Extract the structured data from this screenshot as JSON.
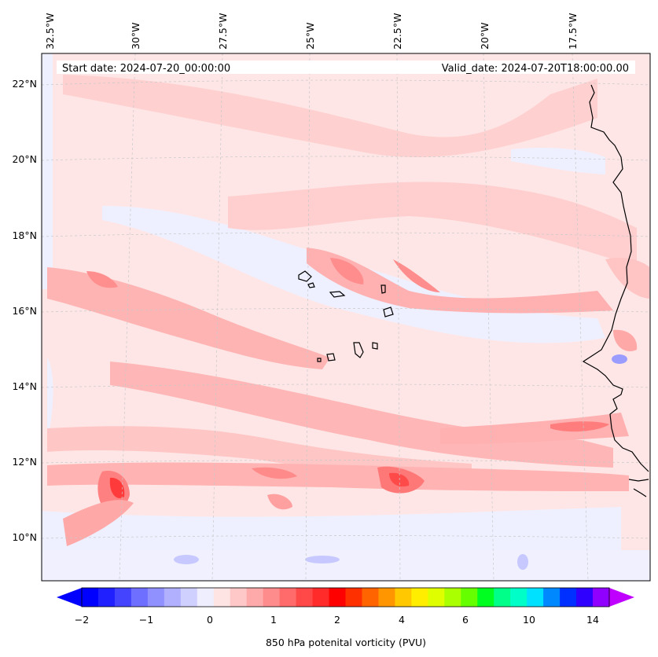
{
  "header": {
    "start_date": "Start date: 2024-07-20_00:00:00",
    "valid_date": "Valid_date: 2024-07-20T18:00:00.00"
  },
  "map": {
    "longitude_labels": [
      "32.5°W",
      "30°W",
      "27.5°W",
      "25°W",
      "22.5°W",
      "20°W",
      "17.5°W"
    ],
    "latitude_labels": [
      "22°N",
      "20°N",
      "18°N",
      "16°N",
      "14°N",
      "12°N",
      "10°N"
    ]
  },
  "colorbar": {
    "label": "850 hPa potenital vorticity (PVU)",
    "ticks": [
      "−2",
      "−1",
      "0",
      "1",
      "2",
      "4",
      "6",
      "10",
      "14"
    ],
    "colors": [
      "#0000ff",
      "#2020ff",
      "#4444ff",
      "#6e6eff",
      "#9090ff",
      "#b0b0ff",
      "#d0d0ff",
      "#eeeeff",
      "#ffe4e4",
      "#ffc8c8",
      "#ffaaaa",
      "#ff8c8c",
      "#ff6a6a",
      "#ff4848",
      "#ff2a2a",
      "#ff0000",
      "#ff3000",
      "#ff6400",
      "#ff9600",
      "#ffc800",
      "#ffee00",
      "#dfff00",
      "#aaff00",
      "#66ff00",
      "#00ff20",
      "#00ff88",
      "#00ffc8",
      "#00e0ff",
      "#0088ff",
      "#0030ff",
      "#3000ff",
      "#9000ff"
    ],
    "extend_low_color": "#0000ff",
    "extend_high_color": "#c000ff"
  }
}
